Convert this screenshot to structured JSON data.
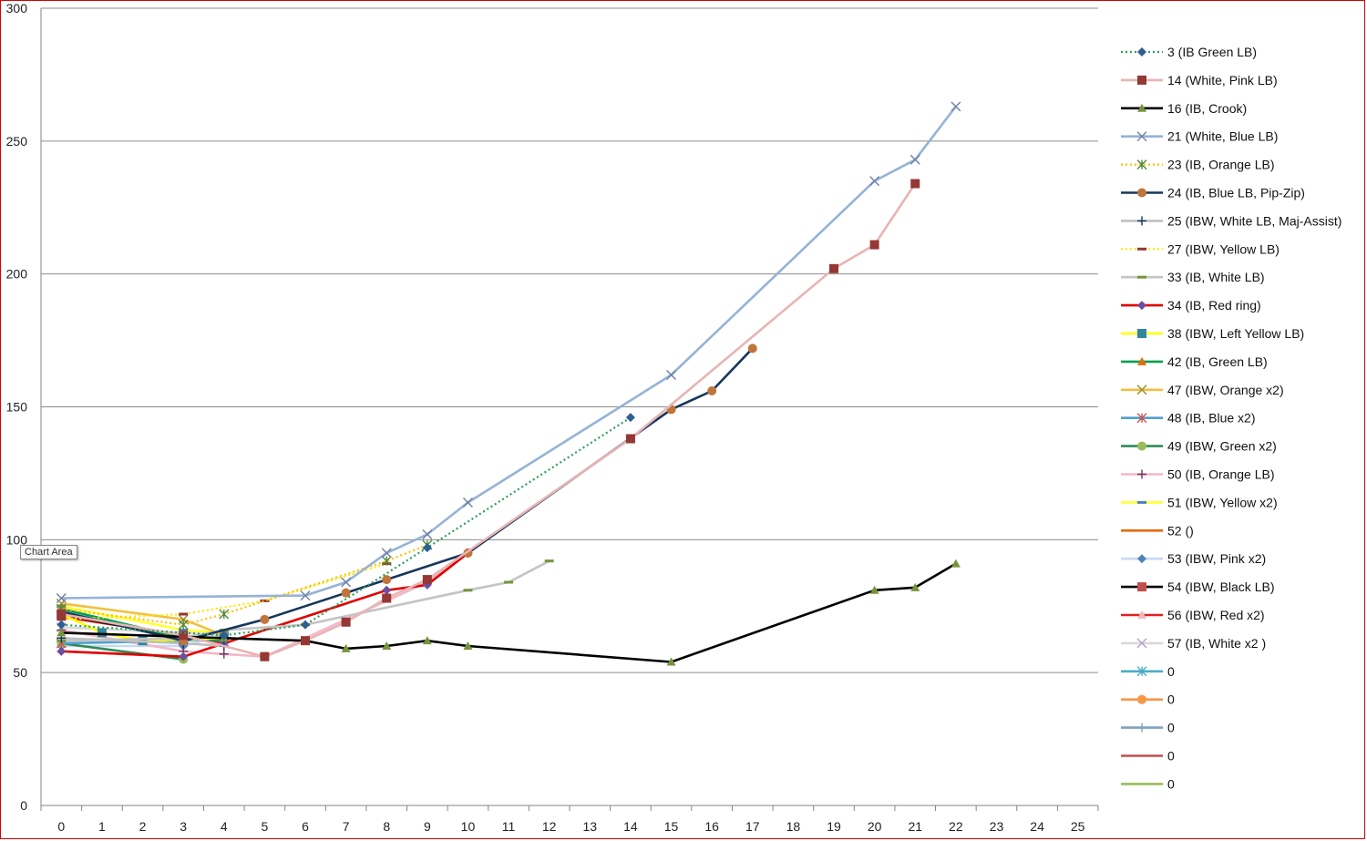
{
  "tooltip": "Chart Area",
  "chart_data": {
    "type": "line",
    "xlim": [
      0,
      25
    ],
    "ylim": [
      0,
      300
    ],
    "x_ticks": [
      0,
      1,
      2,
      3,
      4,
      5,
      6,
      7,
      8,
      9,
      10,
      11,
      12,
      13,
      14,
      15,
      16,
      17,
      18,
      19,
      20,
      21,
      22,
      23,
      24,
      25
    ],
    "y_ticks": [
      0,
      50,
      100,
      150,
      200,
      250,
      300
    ],
    "grid": "horizontal",
    "legend_position": "right",
    "series": [
      {
        "name": "3 (IB Green LB)",
        "color": "#2e9e5b",
        "dash": "dotted",
        "marker": "diamond",
        "marker_color": "#2e5f8f",
        "points": [
          [
            0,
            68
          ],
          [
            4,
            64
          ],
          [
            6,
            68
          ],
          [
            9,
            97
          ],
          [
            14,
            146
          ]
        ]
      },
      {
        "name": "14 (White, Pink LB)",
        "color": "#e8b4b4",
        "dash": "solid",
        "marker": "square",
        "marker_color": "#953735",
        "points": [
          [
            0,
            72
          ],
          [
            3,
            64
          ],
          [
            5,
            56
          ],
          [
            6,
            62
          ],
          [
            7,
            69
          ],
          [
            8,
            78
          ],
          [
            9,
            85
          ],
          [
            14,
            138
          ],
          [
            19,
            202
          ],
          [
            20,
            211
          ],
          [
            21,
            234
          ]
        ]
      },
      {
        "name": "16 (IB, Crook)",
        "color": "#000000",
        "dash": "solid",
        "marker": "triangle",
        "marker_color": "#77933c",
        "points": [
          [
            0,
            65
          ],
          [
            4,
            63
          ],
          [
            6,
            62
          ],
          [
            7,
            59
          ],
          [
            8,
            60
          ],
          [
            9,
            62
          ],
          [
            10,
            60
          ],
          [
            15,
            54
          ],
          [
            20,
            81
          ],
          [
            21,
            82
          ],
          [
            22,
            91
          ]
        ]
      },
      {
        "name": "21 (White, Blue LB)",
        "color": "#95b3d7",
        "dash": "solid",
        "marker": "x",
        "marker_color": "#6f7fa8",
        "points": [
          [
            0,
            78
          ],
          [
            6,
            79
          ],
          [
            7,
            84
          ],
          [
            8,
            95
          ],
          [
            9,
            102
          ],
          [
            10,
            114
          ],
          [
            15,
            162
          ],
          [
            20,
            235
          ],
          [
            21,
            243
          ],
          [
            22,
            263
          ]
        ]
      },
      {
        "name": "23 (IB, Orange LB)",
        "color": "#ffc000",
        "dash": "dotted",
        "marker": "star",
        "marker_color": "#4f8a3c",
        "points": [
          [
            0,
            74
          ],
          [
            3,
            68
          ],
          [
            4,
            72
          ],
          [
            8,
            92
          ],
          [
            9,
            98
          ]
        ]
      },
      {
        "name": "24 (IB, Blue LB, Pip-Zip)",
        "color": "#17365d",
        "dash": "solid",
        "marker": "circle",
        "marker_color": "#c0753a",
        "points": [
          [
            0,
            73
          ],
          [
            3,
            62
          ],
          [
            5,
            70
          ],
          [
            7,
            80
          ],
          [
            8,
            85
          ],
          [
            10,
            95
          ],
          [
            15,
            149
          ],
          [
            16,
            156
          ],
          [
            17,
            172
          ]
        ]
      },
      {
        "name": "25 (IBW, White LB, Maj-Assist)",
        "color": "#bfbfbf",
        "dash": "solid",
        "marker": "plus",
        "marker_color": "#17365d",
        "points": [
          [
            0,
            63
          ],
          [
            3,
            61
          ],
          [
            4,
            60
          ]
        ]
      },
      {
        "name": "27 (IBW, Yellow LB)",
        "color": "#ffe600",
        "dash": "dotted",
        "marker": "dash",
        "marker_color": "#953735",
        "points": [
          [
            0,
            70
          ],
          [
            3,
            72
          ],
          [
            5,
            77
          ],
          [
            8,
            91
          ]
        ]
      },
      {
        "name": "33 (IB, White LB)",
        "color": "#c4c4c4",
        "dash": "solid",
        "marker": "dash",
        "marker_color": "#77933c",
        "points": [
          [
            0,
            62
          ],
          [
            3,
            63
          ],
          [
            4,
            66
          ],
          [
            6,
            68
          ],
          [
            10,
            81
          ],
          [
            11,
            84
          ],
          [
            12,
            92
          ]
        ]
      },
      {
        "name": "34 (IB, Red ring)",
        "color": "#e00000",
        "dash": "solid",
        "marker": "diamond",
        "marker_color": "#6f4da0",
        "points": [
          [
            0,
            58
          ],
          [
            3,
            56
          ],
          [
            4,
            61
          ],
          [
            8,
            81
          ],
          [
            9,
            83
          ],
          [
            10,
            95
          ]
        ]
      },
      {
        "name": "38 (IBW, Left Yellow LB)",
        "color": "#ffff00",
        "dash": "solid",
        "marker": "square",
        "marker_color": "#31859c",
        "points": [
          [
            0,
            72
          ],
          [
            1,
            65
          ],
          [
            2,
            62
          ],
          [
            4,
            63
          ]
        ]
      },
      {
        "name": "42 (IB, Green LB)",
        "color": "#00a050",
        "dash": "solid",
        "marker": "triangle",
        "marker_color": "#e46c0a",
        "points": [
          [
            0,
            74
          ],
          [
            3,
            63
          ],
          [
            4,
            62
          ]
        ]
      },
      {
        "name": "47 (IBW, Orange x2)",
        "color": "#f0c040",
        "dash": "solid",
        "marker": "x",
        "marker_color": "#9b8b2a",
        "points": [
          [
            0,
            76
          ],
          [
            3,
            70
          ],
          [
            4,
            64
          ]
        ]
      },
      {
        "name": "48 (IB, Blue x2)",
        "color": "#4f9fcf",
        "dash": "solid",
        "marker": "star",
        "marker_color": "#d05050",
        "points": [
          [
            0,
            61
          ],
          [
            3,
            62
          ],
          [
            4,
            63
          ]
        ]
      },
      {
        "name": "49 (IBW, Green x2)",
        "color": "#2e8b57",
        "dash": "solid",
        "marker": "circle",
        "marker_color": "#9bbb59",
        "points": [
          [
            0,
            61
          ],
          [
            3,
            55
          ]
        ]
      },
      {
        "name": "50 (IB, Orange LB)",
        "color": "#f2b8c6",
        "dash": "solid",
        "marker": "plus",
        "marker_color": "#7a2f5f",
        "points": [
          [
            0,
            66
          ],
          [
            3,
            58
          ],
          [
            4,
            57
          ],
          [
            5,
            56
          ],
          [
            9,
            84
          ],
          [
            10,
            95
          ]
        ]
      },
      {
        "name": "51 (IBW, Yellow x2)",
        "color": "#ffff33",
        "dash": "solid",
        "marker": "dash",
        "marker_color": "#4f81bd",
        "points": [
          [
            0,
            75
          ],
          [
            3,
            66
          ],
          [
            4,
            65
          ]
        ]
      },
      {
        "name": "52 ()",
        "color": "#e46c0a",
        "dash": "solid",
        "marker": "none",
        "marker_color": "#e46c0a",
        "points": []
      },
      {
        "name": "53 (IBW, Pink x2)",
        "color": "#c6d9f1",
        "dash": "solid",
        "marker": "diamond",
        "marker_color": "#4f81bd",
        "points": [
          [
            0,
            60
          ],
          [
            3,
            60
          ],
          [
            4,
            64
          ]
        ]
      },
      {
        "name": "54 (IBW, Black LB)",
        "color": "#000000",
        "dash": "solid",
        "marker": "square",
        "marker_color": "#c0504d",
        "points": [
          [
            0,
            72
          ],
          [
            3,
            63
          ]
        ]
      },
      {
        "name": "56 (IBW, Red x2)",
        "color": "#e02020",
        "dash": "solid",
        "marker": "triangle",
        "marker_color": "#f2b8b8",
        "points": [
          [
            0,
            71
          ],
          [
            3,
            64
          ],
          [
            4,
            61
          ]
        ]
      },
      {
        "name": "57 (IB, White x2 )",
        "color": "#d9d9d9",
        "dash": "solid",
        "marker": "x",
        "marker_color": "#b3a2c7",
        "points": [
          [
            0,
            67
          ],
          [
            3,
            65
          ],
          [
            4,
            64
          ]
        ]
      },
      {
        "name": "0",
        "color": "#4bacc6",
        "dash": "solid",
        "marker": "star",
        "marker_color": "#4bacc6",
        "points": []
      },
      {
        "name": "0",
        "color": "#f79646",
        "dash": "solid",
        "marker": "circle",
        "marker_color": "#f79646",
        "points": []
      },
      {
        "name": "0",
        "color": "#7f9fbf",
        "dash": "solid",
        "marker": "plus",
        "marker_color": "#7f9fbf",
        "points": []
      },
      {
        "name": "0",
        "color": "#c0504d",
        "dash": "solid",
        "marker": "none",
        "marker_color": "#c0504d",
        "points": []
      },
      {
        "name": "0",
        "color": "#9bbb59",
        "dash": "solid",
        "marker": "none",
        "marker_color": "#9bbb59",
        "points": []
      }
    ]
  }
}
